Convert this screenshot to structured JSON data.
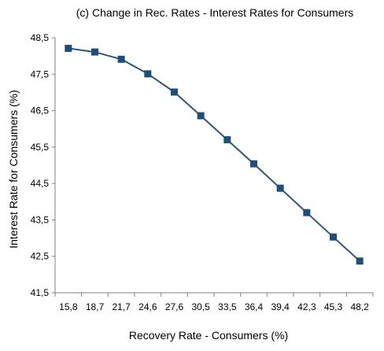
{
  "chart_data": {
    "type": "line",
    "title": "(c)  Change in Rec. Rates - Interest Rates for Consumers",
    "xlabel": "Recovery Rate - Consumers (%)",
    "ylabel": "Interest Rate for Consumers (%)",
    "categories": [
      "15,8",
      "18,7",
      "21,7",
      "24,6",
      "27,6",
      "30,5",
      "33,5",
      "36,4",
      "39,4",
      "42,3",
      "45,3",
      "48,2"
    ],
    "y_ticks": [
      "48,5",
      "47,5",
      "46,5",
      "45,5",
      "44,5",
      "43,5",
      "42,5",
      "41,5"
    ],
    "ylim": [
      41.5,
      48.5
    ],
    "series": [
      {
        "values": [
          48.21,
          48.11,
          47.91,
          47.51,
          47.01,
          46.36,
          45.7,
          45.04,
          44.37,
          43.7,
          43.03,
          42.37
        ]
      }
    ],
    "marker": "square",
    "grid": false,
    "legend": "none",
    "colors": {
      "line": "#2f557a",
      "marker": "#1f4e79",
      "axis": "#808080"
    }
  }
}
